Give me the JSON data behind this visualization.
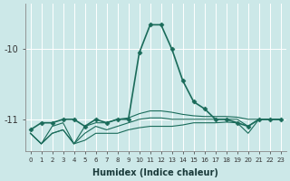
{
  "xlabel": "Humidex (Indice chaleur)",
  "ylabel": "",
  "xlim": [
    -0.5,
    23.5
  ],
  "ylim": [
    -11.45,
    -9.35
  ],
  "yticks": [
    -11,
    -10
  ],
  "xticks": [
    0,
    1,
    2,
    3,
    4,
    5,
    6,
    7,
    8,
    9,
    10,
    11,
    12,
    13,
    14,
    15,
    16,
    17,
    18,
    19,
    20,
    21,
    22,
    23
  ],
  "bg_color": "#cce8e8",
  "grid_color": "#ffffff",
  "line_color": "#1a6b5a",
  "series": [
    {
      "x": [
        0,
        1,
        2,
        3,
        4,
        5,
        6,
        7,
        8,
        9,
        10,
        11,
        12,
        13,
        14,
        15,
        16,
        17,
        18,
        19,
        20,
        21,
        22,
        23
      ],
      "y": [
        -11.15,
        -11.05,
        -11.05,
        -11.0,
        -11.0,
        -11.1,
        -11.0,
        -11.05,
        -11.0,
        -11.0,
        -10.05,
        -9.65,
        -9.65,
        -10.0,
        -10.45,
        -10.75,
        -10.85,
        -11.0,
        -11.0,
        -11.05,
        -11.1,
        -11.0,
        -11.0,
        -11.0
      ],
      "marker": "D",
      "markersize": 2.5,
      "linewidth": 1.2
    },
    {
      "x": [
        0,
        1,
        2,
        3,
        4,
        5,
        6,
        7,
        8,
        9,
        10,
        11,
        12,
        13,
        14,
        15,
        16,
        17,
        18,
        19,
        20,
        21,
        22,
        23
      ],
      "y": [
        -11.2,
        -11.35,
        -11.2,
        -11.15,
        -11.35,
        -11.3,
        -11.2,
        -11.2,
        -11.2,
        -11.15,
        -11.12,
        -11.1,
        -11.1,
        -11.1,
        -11.08,
        -11.05,
        -11.05,
        -11.05,
        -11.04,
        -11.05,
        -11.2,
        -11.0,
        -11.0,
        -11.0
      ],
      "marker": null,
      "markersize": 0,
      "linewidth": 0.8
    },
    {
      "x": [
        0,
        1,
        2,
        3,
        4,
        5,
        6,
        7,
        8,
        9,
        10,
        11,
        12,
        13,
        14,
        15,
        16,
        17,
        18,
        19,
        20,
        21,
        22,
        23
      ],
      "y": [
        -11.2,
        -11.35,
        -11.2,
        -11.15,
        -11.35,
        -11.2,
        -11.1,
        -11.15,
        -11.1,
        -11.05,
        -11.0,
        -10.98,
        -10.98,
        -11.0,
        -11.0,
        -11.0,
        -11.0,
        -11.0,
        -11.0,
        -11.0,
        -11.1,
        -11.0,
        -11.0,
        -11.0
      ],
      "marker": null,
      "markersize": 0,
      "linewidth": 0.8
    },
    {
      "x": [
        0,
        1,
        2,
        3,
        4,
        5,
        6,
        7,
        8,
        9,
        10,
        11,
        12,
        13,
        14,
        15,
        16,
        17,
        18,
        19,
        20,
        21,
        22,
        23
      ],
      "y": [
        -11.2,
        -11.35,
        -11.1,
        -11.05,
        -11.35,
        -11.1,
        -11.05,
        -11.05,
        -11.0,
        -10.98,
        -10.92,
        -10.88,
        -10.88,
        -10.9,
        -10.93,
        -10.95,
        -10.96,
        -10.96,
        -10.96,
        -10.97,
        -11.0,
        -11.0,
        -11.0,
        -11.0
      ],
      "marker": null,
      "markersize": 0,
      "linewidth": 0.8
    }
  ]
}
